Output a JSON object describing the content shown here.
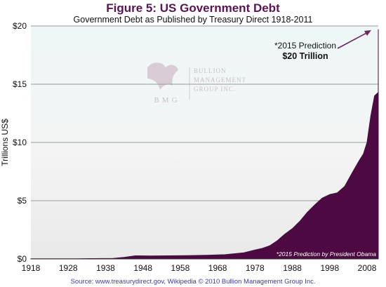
{
  "chart_data": {
    "type": "area",
    "title": "Figure 5: US Government Debt",
    "subtitle": "Government Debt as Published by Treasury Direct 1918-2011",
    "ylabel": "Trillions US$",
    "xlim": [
      1918,
      2011
    ],
    "ylim": [
      0,
      20
    ],
    "x_ticks": [
      "1918",
      "1928",
      "1938",
      "1948",
      "1958",
      "1968",
      "1978",
      "1988",
      "1998",
      "2008"
    ],
    "y_ticks": [
      "$0",
      "$5",
      "$10",
      "$15",
      "$20"
    ],
    "y_tick_values": [
      0,
      5,
      10,
      15,
      20
    ],
    "grid": true,
    "x": [
      1918,
      1925,
      1930,
      1935,
      1940,
      1943,
      1946,
      1950,
      1955,
      1960,
      1965,
      1970,
      1975,
      1978,
      1980,
      1982,
      1984,
      1986,
      1988,
      1990,
      1992,
      1994,
      1996,
      1998,
      2000,
      2002,
      2004,
      2006,
      2007,
      2008,
      2009,
      2010,
      2011
    ],
    "values": [
      0.02,
      0.02,
      0.02,
      0.03,
      0.05,
      0.14,
      0.27,
      0.26,
      0.27,
      0.29,
      0.32,
      0.37,
      0.53,
      0.77,
      0.91,
      1.14,
      1.57,
      2.13,
      2.6,
      3.23,
      4.0,
      4.64,
      5.22,
      5.53,
      5.67,
      6.23,
      7.38,
      8.5,
      9.0,
      10.0,
      12.3,
      14.0,
      14.3
    ],
    "prediction": {
      "x": 2015,
      "value": 20,
      "label": "*2015 Prediction",
      "amount": "$20 Trillion"
    },
    "footnote": "*2015 Prediction by President Obama",
    "colors": {
      "area": "#4d0a42",
      "title": "#5b1352",
      "source": "#3a3aa8",
      "grid": "#9a9a9a",
      "arrow": "#6a2a60"
    }
  },
  "watermark": {
    "line1": "BULLION",
    "line2": "MANAGEMENT",
    "line3": "GROUP INC.",
    "initials": "BMG"
  },
  "source": "Source: www.treasurydirect.gov, Wikipedia © 2010 Bullion Management Group Inc."
}
